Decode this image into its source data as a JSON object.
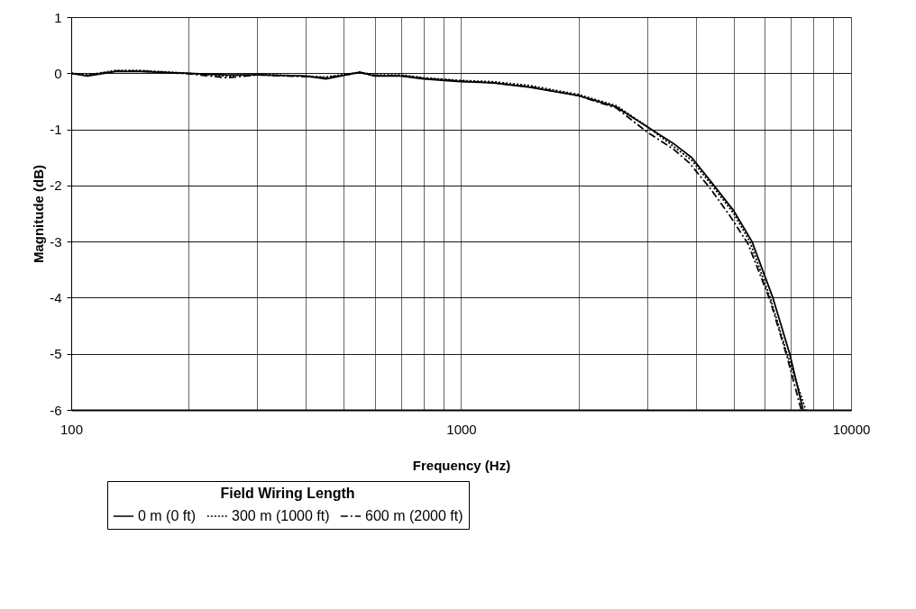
{
  "chart_data": {
    "type": "line",
    "xlabel": "Frequency (Hz)",
    "ylabel": "Magnitude (dB)",
    "legend_title": "Field Wiring Length",
    "legend": "bottom",
    "log": "x",
    "grid": true,
    "xlim": [
      100,
      10000
    ],
    "ylim": [
      -6,
      1
    ],
    "xticks": [
      100,
      {
        "value": 200,
        "label": null
      },
      {
        "value": 300,
        "label": null
      },
      {
        "value": 400,
        "label": null
      },
      {
        "value": 500,
        "label": null
      },
      {
        "value": 600,
        "label": null
      },
      {
        "value": 700,
        "label": null
      },
      {
        "value": 800,
        "label": null
      },
      {
        "value": 900,
        "label": null
      },
      1000,
      {
        "value": 2000,
        "label": null
      },
      {
        "value": 3000,
        "label": null
      },
      {
        "value": 4000,
        "label": null
      },
      {
        "value": 5000,
        "label": null
      },
      {
        "value": 6000,
        "label": null
      },
      {
        "value": 7000,
        "label": null
      },
      {
        "value": 8000,
        "label": null
      },
      {
        "value": 9000,
        "label": null
      },
      10000
    ],
    "yticks": [
      -6,
      -5,
      -4,
      -3,
      -2,
      -1,
      0,
      1
    ],
    "series": [
      {
        "name": "0 m (0 ft)",
        "color": "#000000",
        "line_style": "solid",
        "x": [
          100,
          110,
          130,
          150,
          200,
          250,
          300,
          400,
          450,
          550,
          600,
          700,
          800,
          1000,
          1200,
          1500,
          2000,
          2500,
          3070,
          3500,
          3900,
          4450,
          5000,
          5570,
          6300,
          6960,
          7530
        ],
        "values": [
          0,
          -0.05,
          0.03,
          0.03,
          0,
          -0.03,
          -0.03,
          -0.05,
          -0.1,
          0.02,
          -0.05,
          -0.05,
          -0.1,
          -0.15,
          -0.17,
          -0.25,
          -0.4,
          -0.6,
          -1,
          -1.25,
          -1.5,
          -2,
          -2.45,
          -3,
          -4,
          -5,
          -6
        ]
      },
      {
        "name": "300 m (1000 ft)",
        "color": "#000000",
        "line_style": "dotted",
        "x": [
          100,
          110,
          130,
          150,
          200,
          250,
          300,
          400,
          450,
          550,
          600,
          700,
          800,
          1000,
          1200,
          1500,
          2000,
          2500,
          3000,
          3500,
          3900,
          4400,
          5000,
          5500,
          6200,
          6850,
          7650
        ],
        "values": [
          0,
          -0.03,
          0.05,
          0.05,
          0,
          -0.05,
          -0.02,
          -0.05,
          -0.07,
          0.02,
          -0.03,
          -0.03,
          -0.08,
          -0.13,
          -0.15,
          -0.22,
          -0.38,
          -0.58,
          -0.95,
          -1.3,
          -1.55,
          -2,
          -2.5,
          -3,
          -4,
          -5,
          -6
        ]
      },
      {
        "name": "600 m (2000 ft)",
        "color": "#000000",
        "line_style": "dashdot",
        "x": [
          100,
          110,
          130,
          150,
          200,
          250,
          300,
          400,
          450,
          550,
          600,
          700,
          800,
          1000,
          1200,
          1500,
          2000,
          2500,
          3000,
          3500,
          3850,
          4350,
          4900,
          5450,
          6200,
          6850,
          7450
        ],
        "values": [
          0,
          -0.04,
          0.04,
          0.04,
          -0.01,
          -0.08,
          -0.03,
          -0.06,
          -0.08,
          0.01,
          -0.04,
          -0.04,
          -0.09,
          -0.14,
          -0.17,
          -0.24,
          -0.4,
          -0.62,
          -1.05,
          -1.35,
          -1.6,
          -2.05,
          -2.55,
          -3.05,
          -4.05,
          -5.05,
          -6
        ]
      }
    ]
  }
}
